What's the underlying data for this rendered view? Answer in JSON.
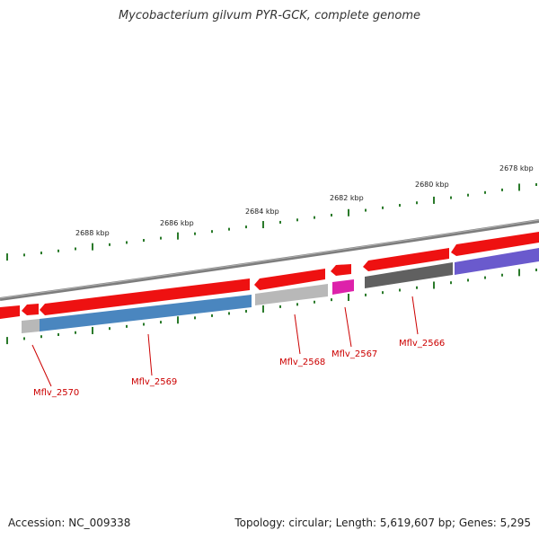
{
  "title": "Mycobacterium gilvum PYR-GCK, complete genome",
  "footer": {
    "accession": "Accession: NC_009338",
    "summary": "Topology: circular; Length: 5,619,607 bp; Genes: 5,295"
  },
  "colors": {
    "backbone": "#808080",
    "forward_cds": "#ee1111",
    "reverse_cds_blue": "#4a86bf",
    "reverse_cds_grey": "#b8b8b8",
    "reverse_cds_dark": "#606060",
    "reverse_cds_magenta": "#dd22aa",
    "reverse_cds_purple": "#6a5acd",
    "tick": "#2a7a2a",
    "label": "#cc0000"
  },
  "kbp_ticks": [
    "2688 kbp",
    "2686 kbp",
    "2684 kbp",
    "2682 kbp",
    "2680 kbp",
    "2678 kbp"
  ],
  "genes": [
    "Mflv_2570",
    "Mflv_2569",
    "Mflv_2568",
    "Mflv_2567",
    "Mflv_2566"
  ]
}
